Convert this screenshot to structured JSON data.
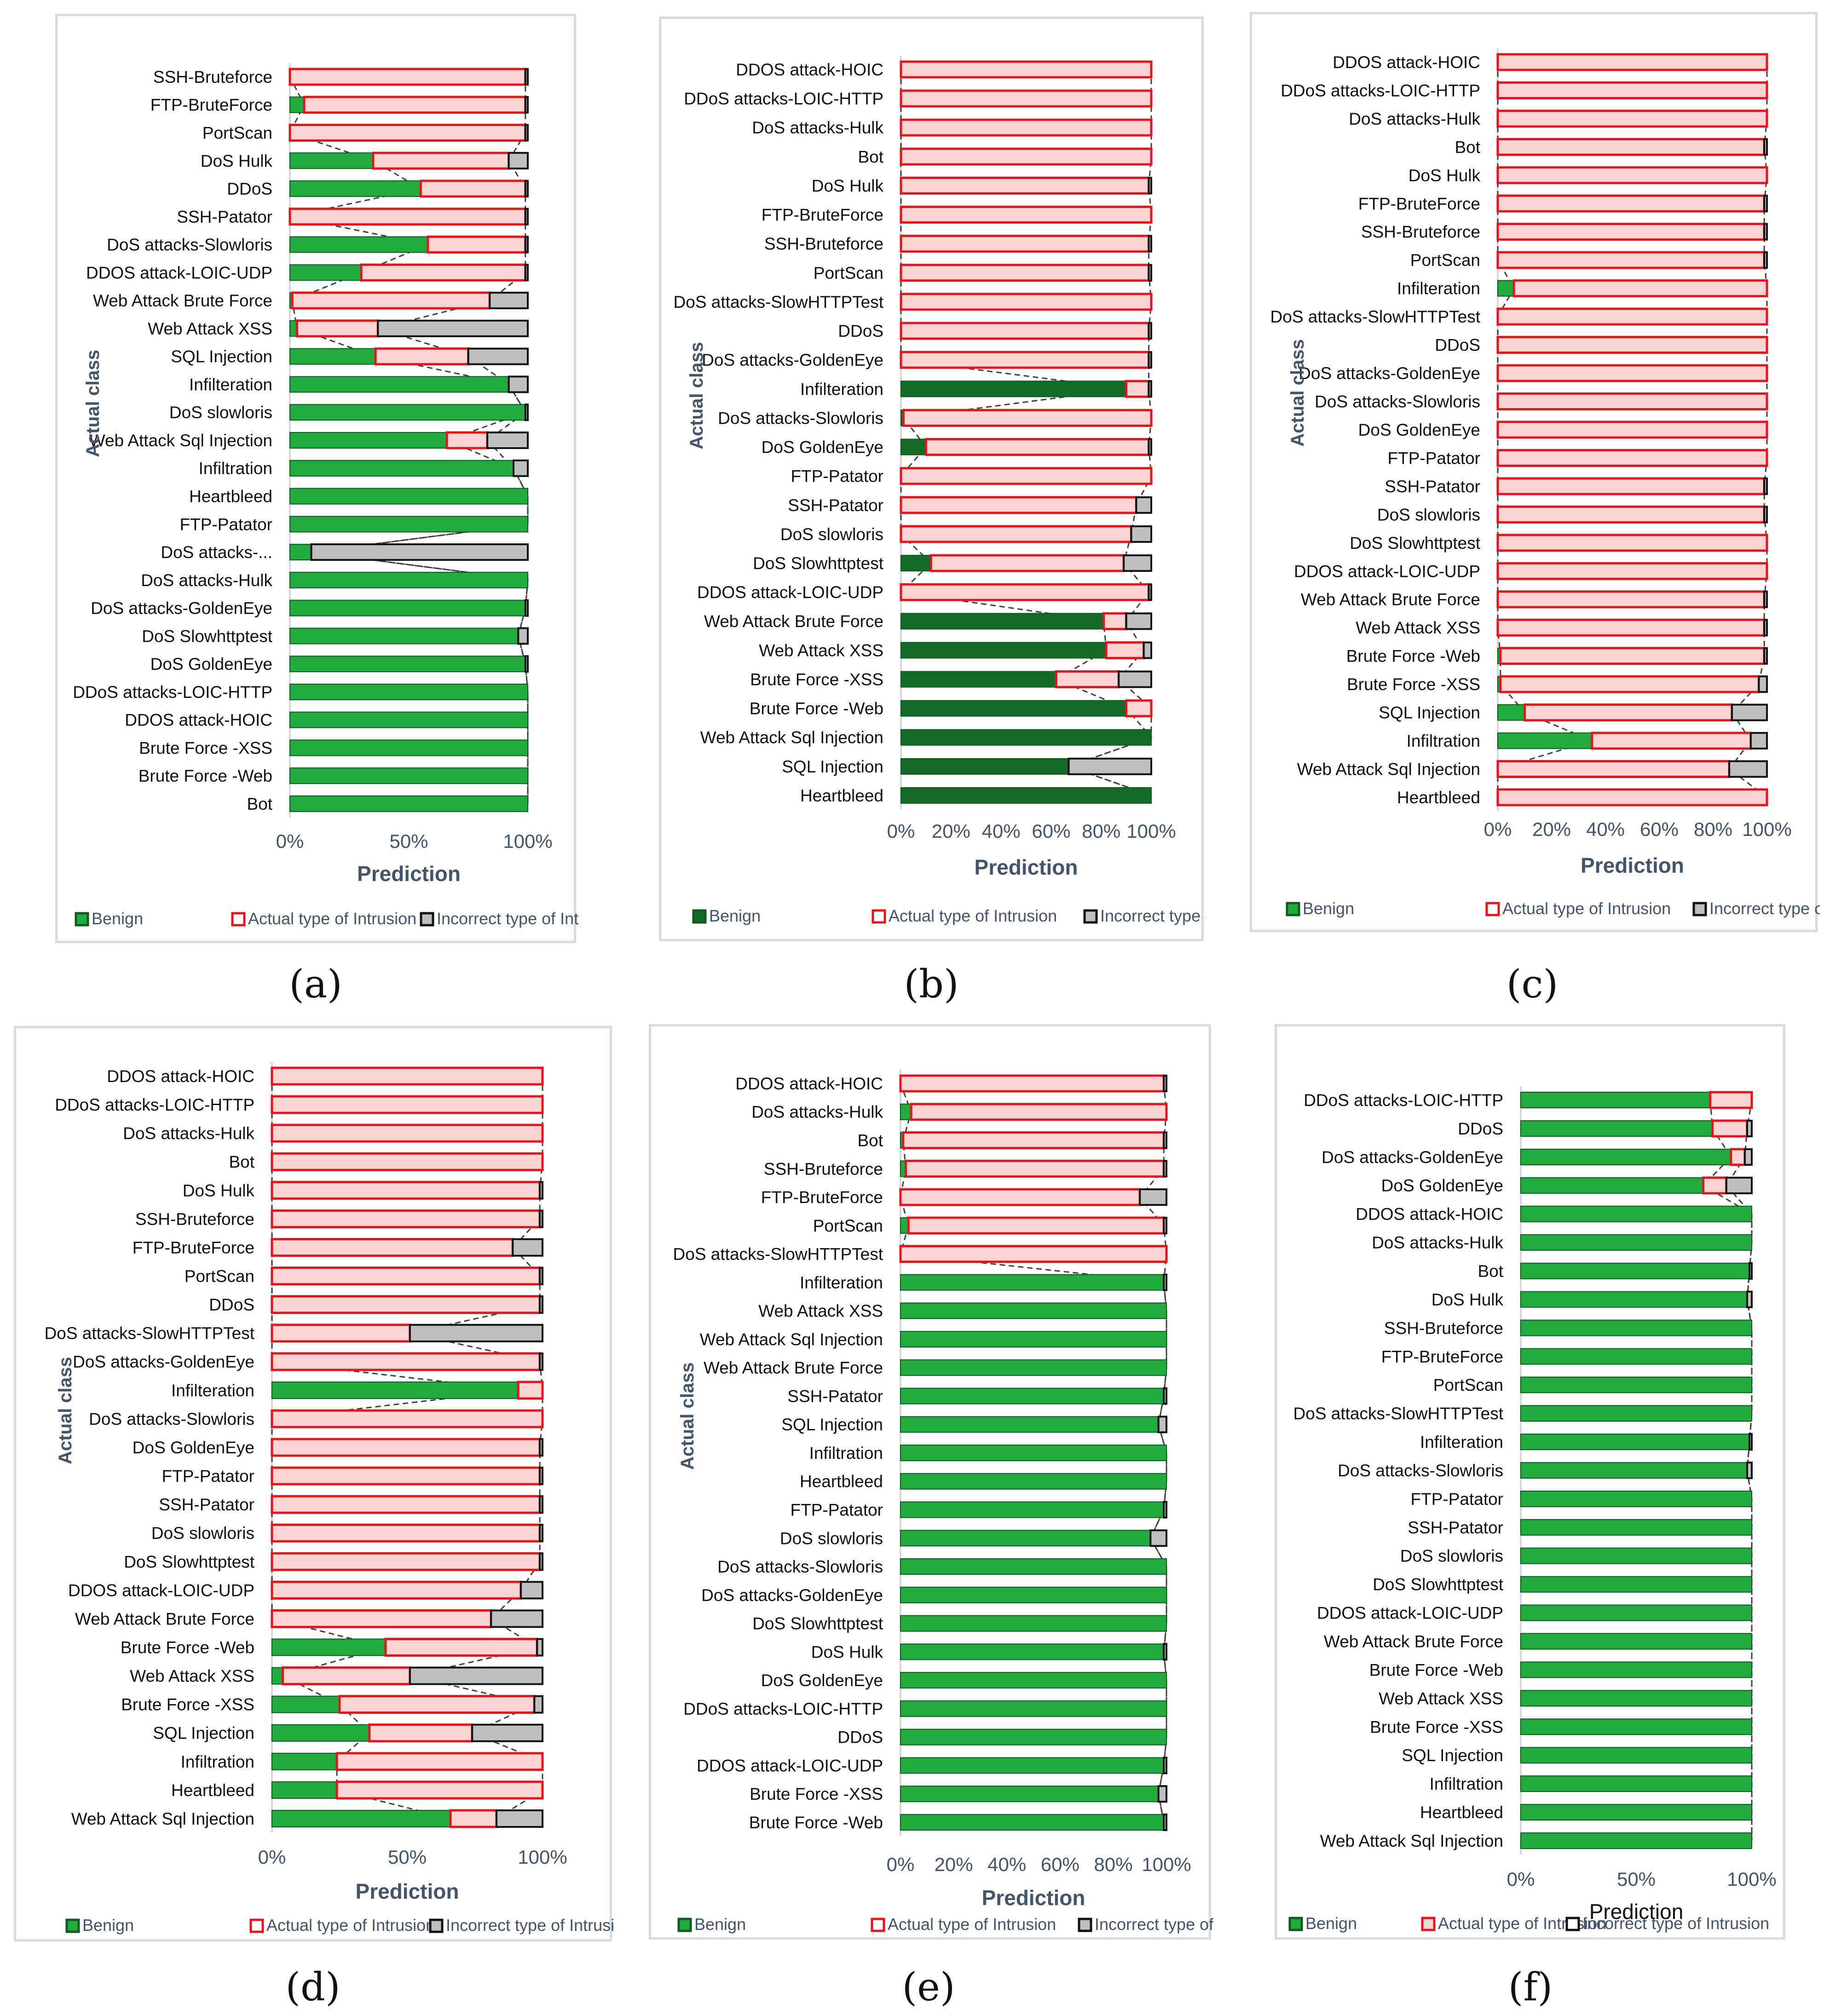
{
  "colors": {
    "benign": "#21ab3f",
    "benign_dark": "#136b27",
    "actual_fill": "#fbd4d4",
    "actual_stroke": "#e8141c",
    "incorrect_fill": "#bfbfbf",
    "incorrect_stroke": "#111111",
    "axis_text": "#44546a"
  },
  "chart_data": [
    {
      "type": "bar",
      "id": "a",
      "caption": "(a)",
      "xlabel": "Prediction",
      "ylabel": "Actual class",
      "xticks": [
        "0%",
        "50%",
        "100%"
      ],
      "xtick_values": [
        0,
        50,
        100
      ],
      "legend": [
        "Benign",
        "Actual type of Intrusion",
        "Incorrect type of Intrusion"
      ],
      "categories": [
        "SSH-Bruteforce",
        "FTP-BruteForce",
        "PortScan",
        "DoS Hulk",
        "DDoS",
        "SSH-Patator",
        "DoS attacks-Slowloris",
        "DDOS attack-LOIC-UDP",
        "Web Attack  Brute Force",
        "Web Attack  XSS",
        "SQL Injection",
        "Infilteration",
        "DoS slowloris",
        "Web Attack Sql Injection",
        "Infiltration",
        "Heartbleed",
        "FTP-Patator",
        "DoS attacks-...",
        "DoS attacks-Hulk",
        "DoS attacks-GoldenEye",
        "DoS Slowhttptest",
        "DoS GoldenEye",
        "DDoS attacks-LOIC-HTTP",
        "DDOS attack-HOIC",
        "Brute Force -XSS",
        "Brute Force -Web",
        "Bot"
      ],
      "series": [
        {
          "name": "Benign",
          "values": [
            0,
            6,
            0,
            35,
            55,
            0,
            58,
            30,
            1,
            3,
            36,
            92,
            99,
            66,
            94,
            100,
            100,
            9,
            100,
            99,
            96,
            99,
            100,
            100,
            100,
            100,
            100
          ]
        },
        {
          "name": "Actual type of Intrusion",
          "values": [
            99,
            93,
            99,
            57,
            44,
            99,
            41,
            69,
            83,
            34,
            39,
            0,
            0,
            17,
            0,
            0,
            0,
            0,
            0,
            0,
            0,
            0,
            0,
            0,
            0,
            0,
            0
          ]
        },
        {
          "name": "Incorrect type of Intrusion",
          "values": [
            1,
            1,
            1,
            8,
            1,
            1,
            1,
            1,
            16,
            63,
            25,
            8,
            1,
            17,
            6,
            0,
            0,
            91,
            0,
            1,
            4,
            1,
            0,
            0,
            0,
            0,
            0
          ]
        }
      ]
    },
    {
      "type": "bar",
      "id": "b",
      "caption": "(b)",
      "xlabel": "Prediction",
      "ylabel": "Actual class",
      "xticks": [
        "0%",
        "20%",
        "40%",
        "60%",
        "80%",
        "100%"
      ],
      "xtick_values": [
        0,
        20,
        40,
        60,
        80,
        100
      ],
      "legend": [
        "Benign",
        "Actual type of Intrusion",
        "Incorrect type of Intrusion"
      ],
      "categories": [
        "DDOS attack-HOIC",
        "DDoS attacks-LOIC-HTTP",
        "DoS attacks-Hulk",
        "Bot",
        "DoS Hulk",
        "FTP-BruteForce",
        "SSH-Bruteforce",
        "PortScan",
        "DoS attacks-SlowHTTPTest",
        "DDoS",
        "DoS attacks-GoldenEye",
        "Infilteration",
        "DoS attacks-Slowloris",
        "DoS GoldenEye",
        "FTP-Patator",
        "SSH-Patator",
        "DoS slowloris",
        "DoS Slowhttptest",
        "DDOS attack-LOIC-UDP",
        "Web Attack  Brute Force",
        "Web Attack XSS",
        "Brute Force -XSS",
        "Brute Force -Web",
        "Web Attack Sql Injection",
        "SQL Injection",
        "Heartbleed"
      ],
      "series": [
        {
          "name": "Benign",
          "values": [
            0,
            0,
            0,
            0,
            0,
            0,
            0,
            0,
            0,
            0,
            0,
            90,
            1,
            10,
            0,
            0,
            0,
            12,
            0,
            81,
            82,
            62,
            90,
            100,
            67,
            100
          ]
        },
        {
          "name": "Actual type of Intrusion",
          "values": [
            100,
            100,
            100,
            100,
            99,
            100,
            99,
            99,
            100,
            99,
            99,
            9,
            99,
            89,
            100,
            94,
            92,
            77,
            99,
            9,
            15,
            25,
            10,
            0,
            0,
            0
          ]
        },
        {
          "name": "Incorrect type of Intrusion",
          "values": [
            0,
            0,
            0,
            0,
            1,
            0,
            1,
            1,
            0,
            1,
            1,
            1,
            0,
            1,
            0,
            6,
            8,
            11,
            1,
            10,
            3,
            13,
            0,
            0,
            33,
            0
          ]
        }
      ]
    },
    {
      "type": "bar",
      "id": "c",
      "caption": "(c)",
      "xlabel": "Prediction",
      "ylabel": "Actual class",
      "xticks": [
        "0%",
        "20%",
        "40%",
        "60%",
        "80%",
        "100%"
      ],
      "xtick_values": [
        0,
        20,
        40,
        60,
        80,
        100
      ],
      "legend": [
        "Benign",
        "Actual type of Intrusion",
        "Incorrect type of Intrusion"
      ],
      "categories": [
        "DDOS attack-HOIC",
        "DDoS attacks-LOIC-HTTP",
        "DoS attacks-Hulk",
        "Bot",
        "DoS Hulk",
        "FTP-BruteForce",
        "SSH-Bruteforce",
        "PortScan",
        "Infilteration",
        "DoS attacks-SlowHTTPTest",
        "DDoS",
        "DoS attacks-GoldenEye",
        "DoS attacks-Slowloris",
        "DoS GoldenEye",
        "FTP-Patator",
        "SSH-Patator",
        "DoS slowloris",
        "DoS Slowhttptest",
        "DDOS attack-LOIC-UDP",
        "Web Attack Brute Force",
        "Web Attack XSS",
        "Brute Force -Web",
        "Brute Force -XSS",
        "SQL Injection",
        "Infiltration",
        "Web Attack  Sql Injection",
        "Heartbleed"
      ],
      "series": [
        {
          "name": "Benign",
          "values": [
            0,
            0,
            0,
            0,
            0,
            0,
            0,
            0,
            6,
            0,
            0,
            0,
            0,
            0,
            0,
            0,
            0,
            0,
            0,
            0,
            0,
            1,
            1,
            10,
            35,
            0,
            0
          ]
        },
        {
          "name": "Actual type of Intrusion",
          "values": [
            100,
            100,
            100,
            99,
            100,
            99,
            99,
            99,
            94,
            100,
            100,
            100,
            100,
            100,
            100,
            99,
            99,
            100,
            100,
            99,
            99,
            98,
            96,
            77,
            59,
            86,
            100
          ]
        },
        {
          "name": "Incorrect type of Intrusion",
          "values": [
            0,
            0,
            0,
            1,
            0,
            1,
            1,
            1,
            0,
            0,
            0,
            0,
            0,
            0,
            0,
            1,
            1,
            0,
            0,
            1,
            1,
            1,
            3,
            13,
            6,
            14,
            0
          ]
        }
      ]
    },
    {
      "type": "bar",
      "id": "d",
      "caption": "(d)",
      "xlabel": "Prediction",
      "ylabel": "Actual class",
      "xticks": [
        "0%",
        "50%",
        "100%"
      ],
      "xtick_values": [
        0,
        50,
        100
      ],
      "legend": [
        "Benign",
        "Actual type of Intrusion",
        "Incorrect type of Intrusion"
      ],
      "categories": [
        "DDOS attack-HOIC",
        "DDoS attacks-LOIC-HTTP",
        "DoS attacks-Hulk",
        "Bot",
        "DoS Hulk",
        "SSH-Bruteforce",
        "FTP-BruteForce",
        "PortScan",
        "DDoS",
        "DoS attacks-SlowHTTPTest",
        "DoS attacks-GoldenEye",
        "Infilteration",
        "DoS attacks-Slowloris",
        "DoS GoldenEye",
        "FTP-Patator",
        "SSH-Patator",
        "DoS slowloris",
        "DoS Slowhttptest",
        "DDOS attack-LOIC-UDP",
        "Web Attack Brute Force",
        "Brute Force -Web",
        "Web Attack XSS",
        "Brute Force -XSS",
        "SQL Injection",
        "Infiltration",
        "Heartbleed",
        "Web Attack  Sql Injection"
      ],
      "series": [
        {
          "name": "Benign",
          "values": [
            0,
            0,
            0,
            0,
            0,
            0,
            0,
            0,
            0,
            0,
            0,
            91,
            0,
            0,
            0,
            0,
            0,
            0,
            0,
            0,
            42,
            4,
            25,
            36,
            24,
            24,
            66
          ]
        },
        {
          "name": "Actual type of Intrusion",
          "values": [
            100,
            100,
            100,
            100,
            99,
            99,
            89,
            99,
            99,
            51,
            99,
            9,
            100,
            99,
            99,
            99,
            99,
            99,
            92,
            81,
            56,
            47,
            72,
            38,
            76,
            76,
            17
          ]
        },
        {
          "name": "Incorrect type of Intrusion",
          "values": [
            0,
            0,
            0,
            0,
            1,
            1,
            11,
            1,
            1,
            49,
            1,
            0,
            0,
            1,
            1,
            1,
            1,
            1,
            8,
            19,
            2,
            49,
            3,
            26,
            0,
            0,
            17
          ]
        }
      ]
    },
    {
      "type": "bar",
      "id": "e",
      "caption": "(e)",
      "xlabel": "Prediction",
      "ylabel": "Actual class",
      "xticks": [
        "0%",
        "20%",
        "40%",
        "60%",
        "80%",
        "100%"
      ],
      "xtick_values": [
        0,
        20,
        40,
        60,
        80,
        100
      ],
      "legend": [
        "Benign",
        "Actual type of Intrusion",
        "Incorrect type of Intrusion"
      ],
      "categories": [
        "DDOS attack-HOIC",
        "DoS attacks-Hulk",
        "Bot",
        "SSH-Bruteforce",
        "FTP-BruteForce",
        "PortScan",
        "DoS attacks-SlowHTTPTest",
        "Infilteration",
        "Web Attack XSS",
        "Web Attack Sql Injection",
        "Web Attack  Brute Force",
        "SSH-Patator",
        "SQL Injection",
        "Infiltration",
        "Heartbleed",
        "FTP-Patator",
        "DoS slowloris",
        "DoS attacks-Slowloris",
        "DoS attacks-GoldenEye",
        "DoS Slowhttptest",
        "DoS Hulk",
        "DoS GoldenEye",
        "DDoS attacks-LOIC-HTTP",
        "DDoS",
        "DDOS attack-LOIC-UDP",
        "Brute Force -XSS",
        "Brute Force -Web"
      ],
      "series": [
        {
          "name": "Benign",
          "values": [
            0,
            4,
            1,
            2,
            0,
            3,
            0,
            99,
            100,
            100,
            100,
            99,
            97,
            100,
            100,
            99,
            94,
            100,
            100,
            100,
            99,
            100,
            100,
            100,
            99,
            97,
            99
          ]
        },
        {
          "name": "Actual type of Intrusion",
          "values": [
            99,
            96,
            98,
            97,
            90,
            96,
            100,
            0,
            0,
            0,
            0,
            0,
            0,
            0,
            0,
            0,
            0,
            0,
            0,
            0,
            0,
            0,
            0,
            0,
            0,
            0,
            0
          ]
        },
        {
          "name": "Incorrect type of Intrusion",
          "values": [
            1,
            0,
            1,
            1,
            10,
            1,
            0,
            1,
            0,
            0,
            0,
            1,
            3,
            0,
            0,
            1,
            6,
            0,
            0,
            0,
            1,
            0,
            0,
            0,
            1,
            3,
            1
          ]
        }
      ]
    },
    {
      "type": "bar",
      "id": "f",
      "caption": "(f)",
      "xlabel": "Prediction",
      "ylabel": "",
      "xticks": [
        "0%",
        "50%",
        "100%"
      ],
      "xtick_values": [
        0,
        50,
        100
      ],
      "legend": [
        "Benign",
        "Actual type of Intrusion",
        "Incorrect type of Intrusion"
      ],
      "categories": [
        "DDoS attacks-LOIC-HTTP",
        "DDoS",
        "DoS attacks-GoldenEye",
        "DoS GoldenEye",
        "DDOS attack-HOIC",
        "DoS attacks-Hulk",
        "Bot",
        "DoS Hulk",
        "SSH-Bruteforce",
        "FTP-BruteForce",
        "PortScan",
        "DoS attacks-SlowHTTPTest",
        "Infilteration",
        "DoS attacks-Slowloris",
        "FTP-Patator",
        "SSH-Patator",
        "DoS slowloris",
        "DoS Slowhttptest",
        "DDOS attack-LOIC-UDP",
        "Web Attack  Brute Force",
        "Brute Force -Web",
        "Web Attack  XSS",
        "Brute Force -XSS",
        "SQL Injection",
        "Infiltration",
        "Heartbleed",
        "Web Attack  Sql Injection"
      ],
      "series": [
        {
          "name": "Benign",
          "values": [
            82,
            83,
            91,
            79,
            100,
            100,
            99,
            98,
            100,
            100,
            100,
            100,
            99,
            98,
            100,
            100,
            100,
            100,
            100,
            100,
            100,
            100,
            100,
            100,
            100,
            100,
            100
          ]
        },
        {
          "name": "Actual type of Intrusion",
          "values": [
            18,
            15,
            6,
            10,
            0,
            0,
            0,
            0,
            0,
            0,
            0,
            0,
            0,
            0,
            0,
            0,
            0,
            0,
            0,
            0,
            0,
            0,
            0,
            0,
            0,
            0,
            0
          ]
        },
        {
          "name": "Incorrect type of Intrusion",
          "values": [
            0,
            2,
            3,
            11,
            0,
            0,
            1,
            2,
            0,
            0,
            0,
            0,
            1,
            2,
            0,
            0,
            0,
            0,
            0,
            0,
            0,
            0,
            0,
            0,
            0,
            0,
            0
          ]
        }
      ]
    }
  ]
}
